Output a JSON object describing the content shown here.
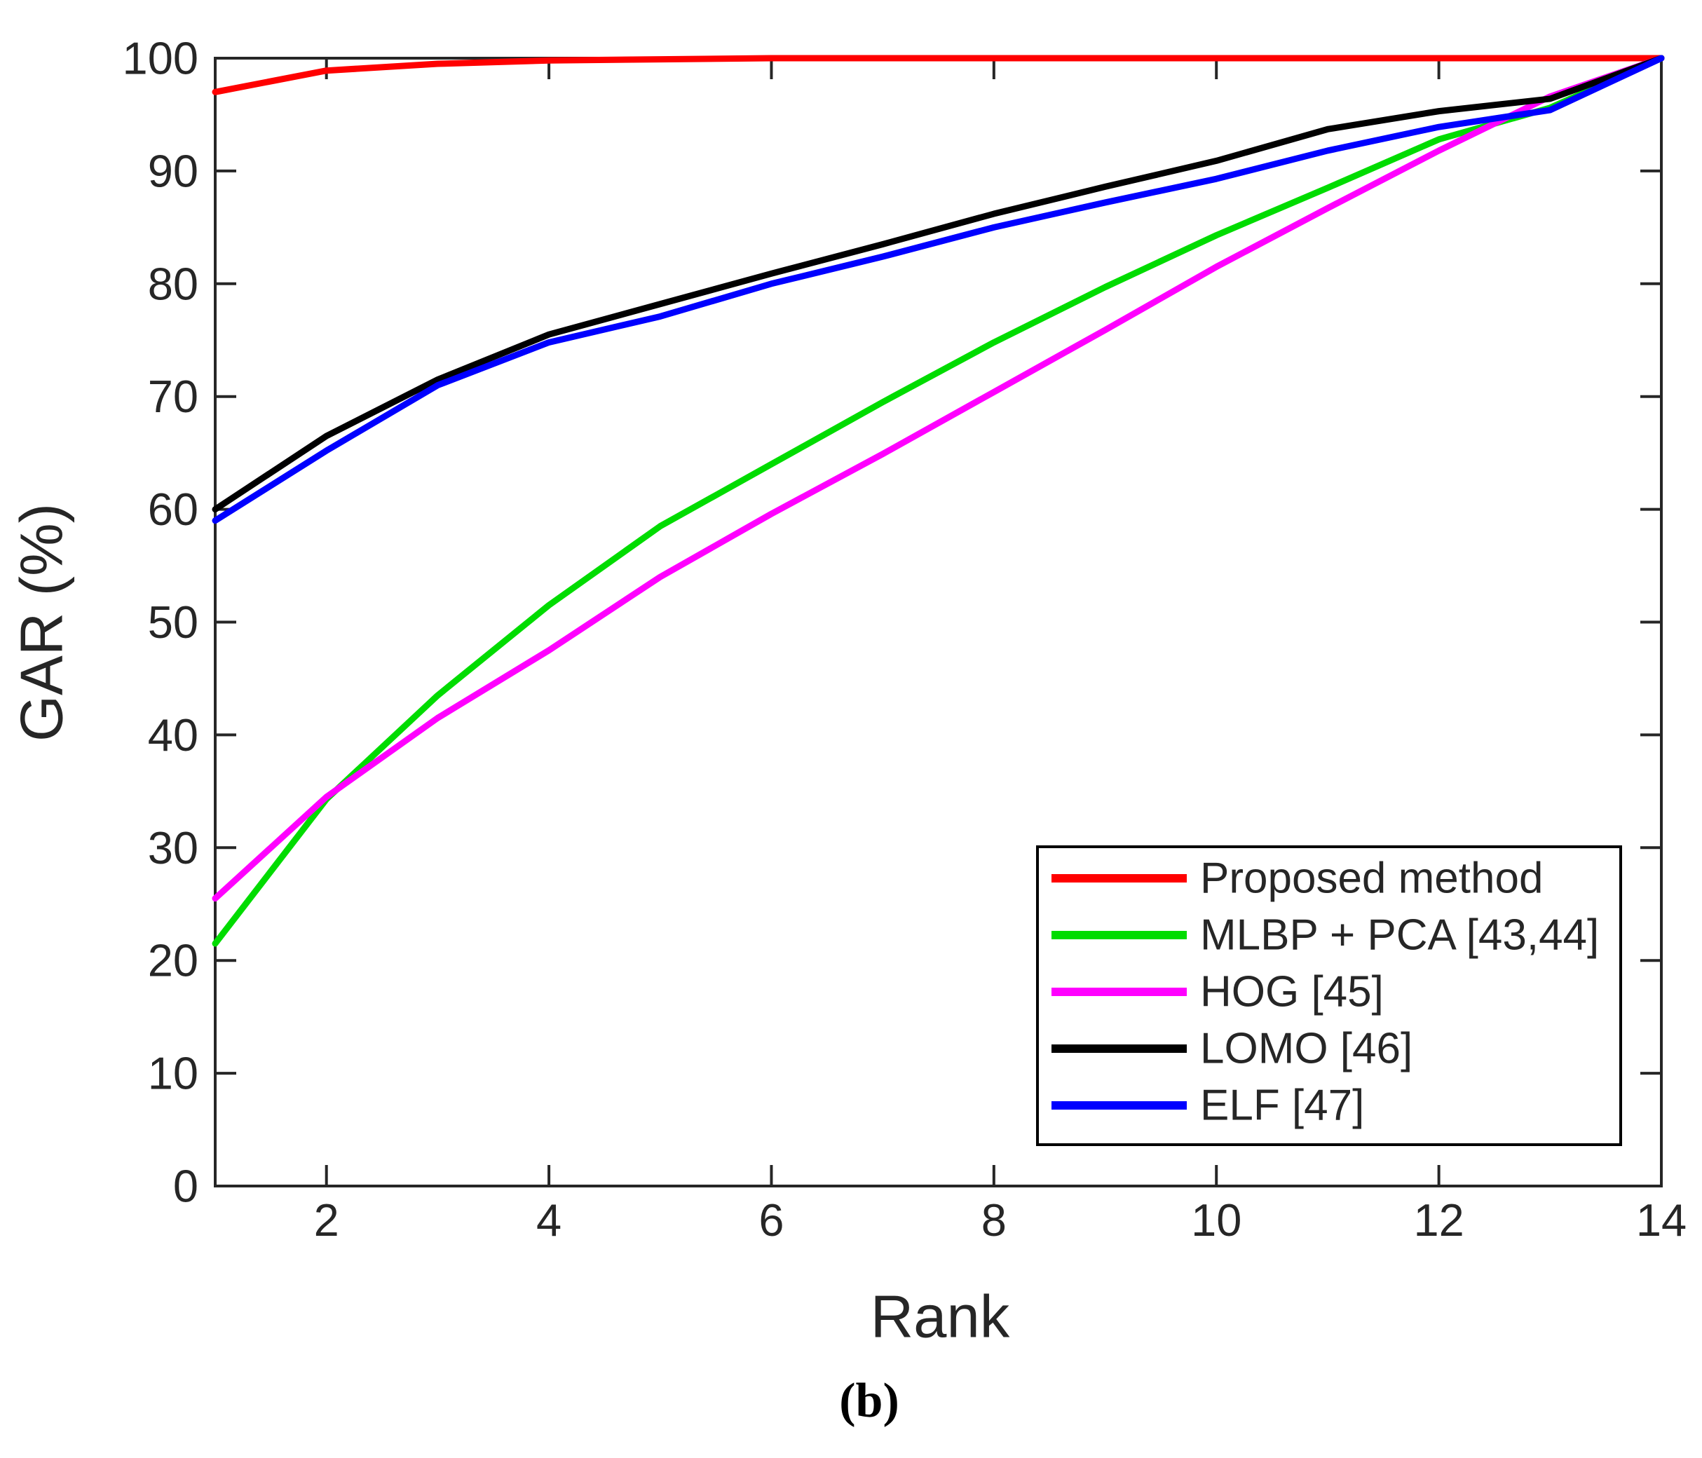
{
  "figure": {
    "caption": "(b)",
    "background": "#ffffff"
  },
  "chart_data": {
    "type": "line",
    "title": "",
    "xlabel": "Rank",
    "ylabel": "GAR (%)",
    "xlim": [
      1,
      14
    ],
    "ylim": [
      0,
      100
    ],
    "x_ticks": [
      2,
      4,
      6,
      8,
      10,
      12,
      14
    ],
    "y_ticks": [
      0,
      10,
      20,
      30,
      40,
      50,
      60,
      70,
      80,
      90,
      100
    ],
    "grid": false,
    "legend_position": "lower right",
    "axis_color": "#262626",
    "x": [
      1,
      2,
      3,
      4,
      5,
      6,
      7,
      8,
      9,
      10,
      11,
      12,
      13,
      14
    ],
    "series": [
      {
        "name": "Proposed method",
        "color": "#ff0000",
        "values": [
          97.0,
          98.9,
          99.5,
          99.8,
          99.9,
          100,
          100,
          100,
          100,
          100,
          100,
          100,
          100,
          100
        ]
      },
      {
        "name": "MLBP + PCA [43,44]",
        "color": "#00dc00",
        "values": [
          21.5,
          34.3,
          43.5,
          51.5,
          58.5,
          64.0,
          69.5,
          74.8,
          79.7,
          84.3,
          88.5,
          92.8,
          95.6,
          100
        ]
      },
      {
        "name": "HOG [45]",
        "color": "#ff00ff",
        "values": [
          25.5,
          34.5,
          41.5,
          47.5,
          54.0,
          59.6,
          64.9,
          70.4,
          75.9,
          81.5,
          86.7,
          91.8,
          96.6,
          100
        ]
      },
      {
        "name": "LOMO [46]",
        "color": "#000000",
        "values": [
          60.0,
          66.5,
          71.5,
          75.5,
          78.2,
          80.9,
          83.5,
          86.2,
          88.6,
          90.9,
          93.7,
          95.3,
          96.4,
          100
        ]
      },
      {
        "name": "ELF [47]",
        "color": "#0000ff",
        "values": [
          59.0,
          65.2,
          71.0,
          74.8,
          77.1,
          80.0,
          82.4,
          85.0,
          87.2,
          89.3,
          91.8,
          93.9,
          95.4,
          100
        ]
      }
    ]
  },
  "layout_labels": {
    "legend_title": "",
    "note": ""
  }
}
